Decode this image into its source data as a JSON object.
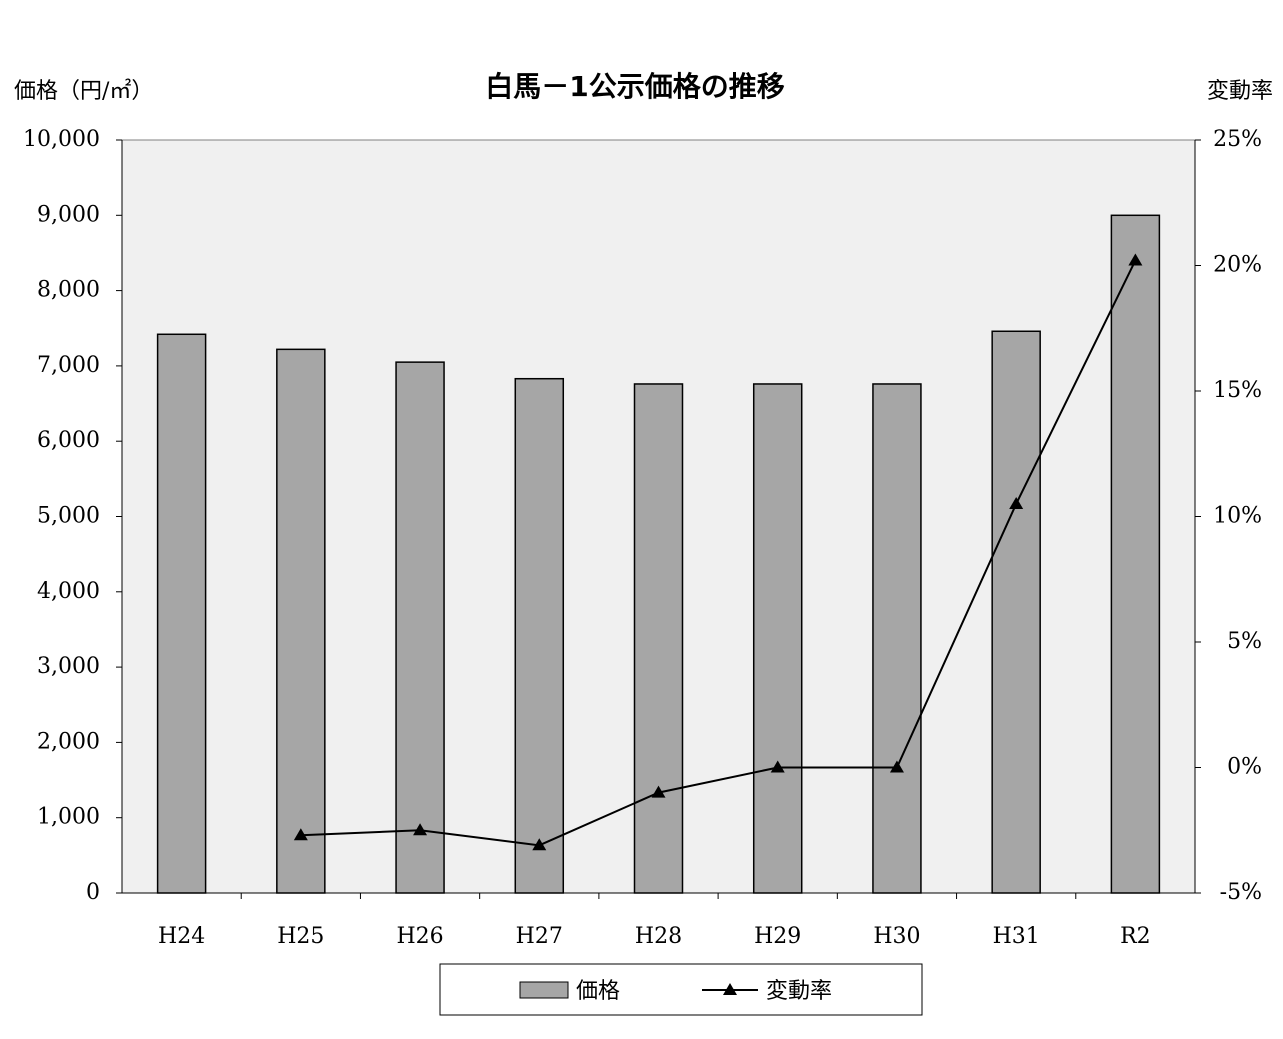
{
  "chart_data": {
    "type": "bar-line",
    "title": "白馬－1公示価格の推移",
    "y_label": "価格（円/㎡）",
    "y2_label": "変動率",
    "categories": [
      "H24",
      "H25",
      "H26",
      "H27",
      "H28",
      "H29",
      "H30",
      "H31",
      "R2"
    ],
    "series": [
      {
        "name": "価格",
        "type": "bar",
        "color": "#a6a6a6",
        "values": [
          7420,
          7220,
          7050,
          6830,
          6760,
          6760,
          6760,
          7460,
          9000
        ]
      },
      {
        "name": "変動率",
        "type": "line",
        "axis": "y2",
        "color": "#000000",
        "values": [
          null,
          -2.7,
          -2.5,
          -3.1,
          -1.0,
          0,
          0,
          10.5,
          20.2
        ]
      }
    ],
    "ylim": [
      0,
      10000
    ],
    "yticks": [
      0,
      {
        "value": 1000,
        "label": "1,000"
      },
      {
        "value": 2000,
        "label": "2,000"
      },
      {
        "value": 3000,
        "label": "3,000"
      },
      {
        "value": 4000,
        "label": "4,000"
      },
      {
        "value": 5000,
        "label": "5,000"
      },
      {
        "value": 6000,
        "label": "6,000"
      },
      {
        "value": 7000,
        "label": "7,000"
      },
      {
        "value": 8000,
        "label": "8,000"
      },
      {
        "value": 9000,
        "label": "9,000"
      },
      {
        "value": 10000,
        "label": "10,000"
      }
    ],
    "y2lim": [
      -5,
      25
    ],
    "y2ticks": [
      {
        "value": -5,
        "label": "-5%"
      },
      {
        "value": 0,
        "label": "0%"
      },
      {
        "value": 5,
        "label": "5%"
      },
      {
        "value": 10,
        "label": "10%"
      },
      {
        "value": 15,
        "label": "15%"
      },
      {
        "value": 20,
        "label": "20%"
      },
      {
        "value": 25,
        "label": "25%"
      }
    ],
    "legend": "bottom"
  }
}
